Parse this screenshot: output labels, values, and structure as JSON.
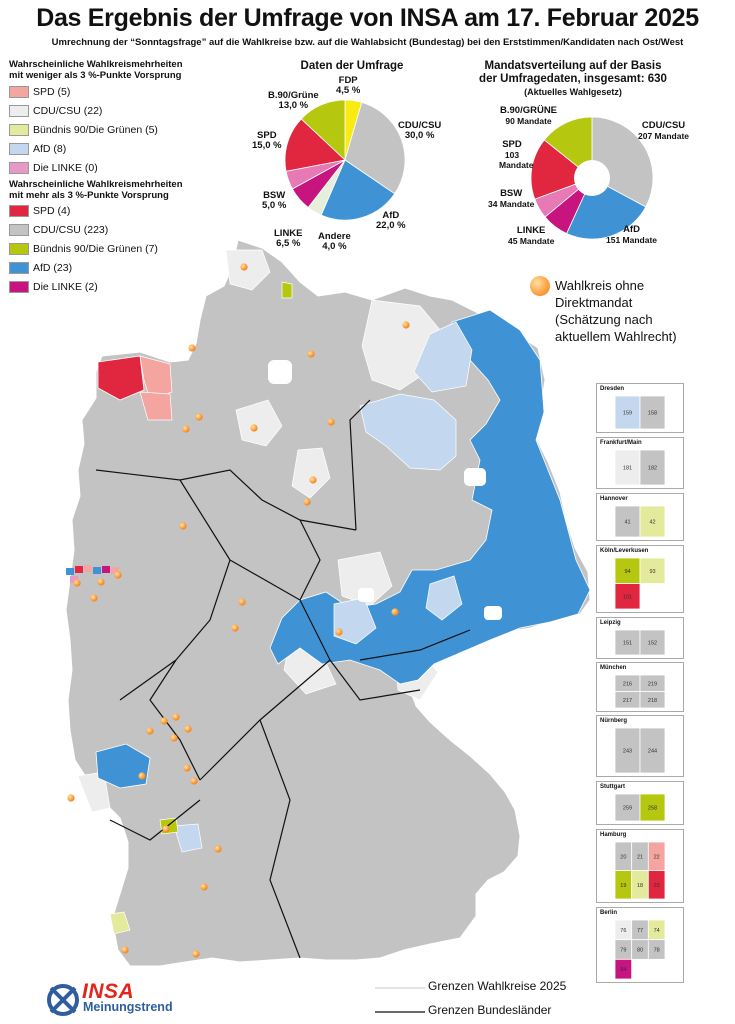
{
  "title": "Das Ergebnis der Umfrage von INSA am 17. Februar 2025",
  "subtitle": "Umrechnung der “Sonntagsfrage” auf die Wahlkreise bzw. auf die Wahlabsicht (Bundestag) bei den Erststimmen/Kandidaten nach Ost/West",
  "colors": {
    "spd": "#e1263f",
    "spd_light": "#f4a5a0",
    "cdu": "#c3c3c3",
    "cdu_light": "#ededed",
    "gruene": "#b5c70e",
    "gruene_light": "#e3ea9c",
    "afd": "#3f93d5",
    "afd_light": "#c3d8ef",
    "linke": "#c7147e",
    "linke_light": "#e79ac7",
    "fdp": "#f7eb12",
    "bsw": "#e77ab4",
    "andere": "#e5efdc"
  },
  "legend_weak": {
    "heading_line1": "Wahrscheinliche Wahlkreismehrheiten",
    "heading_line2": "mit weniger als 3 %-Punkte Vorsprung",
    "items": [
      {
        "label": "SPD (5)",
        "color": "#f4a5a0"
      },
      {
        "label": "CDU/CSU (22)",
        "color": "#ededed"
      },
      {
        "label": "Bündnis 90/Die Grünen (5)",
        "color": "#e3ea9c"
      },
      {
        "label": "AfD (8)",
        "color": "#c3d8ef"
      },
      {
        "label": "Die LINKE (0)",
        "color": "#e79ac7"
      }
    ]
  },
  "legend_strong": {
    "heading_line1": "Wahrscheinliche Wahlkreismehrheiten",
    "heading_line2": "mit mehr als 3 %-Punkte Vorsprung",
    "items": [
      {
        "label": "SPD (4)",
        "color": "#e1263f"
      },
      {
        "label": "CDU/CSU (223)",
        "color": "#c3c3c3"
      },
      {
        "label": "Bündnis 90/Die Grünen (7)",
        "color": "#b5c70e"
      },
      {
        "label": "AfD (23)",
        "color": "#3f93d5"
      },
      {
        "label": "Die LINKE (2)",
        "color": "#c7147e"
      }
    ]
  },
  "chart_data": [
    {
      "type": "pie",
      "title": "Daten der Umfrage",
      "series": [
        {
          "name": "FDP",
          "value": 4.5,
          "label": "4,5 %",
          "color": "#f7eb12"
        },
        {
          "name": "CDU/CSU",
          "value": 30.0,
          "label": "30,0 %",
          "color": "#c3c3c3"
        },
        {
          "name": "AfD",
          "value": 22.0,
          "label": "22,0 %",
          "color": "#3f93d5"
        },
        {
          "name": "Andere",
          "value": 4.0,
          "label": "4,0 %",
          "color": "#e5efdc"
        },
        {
          "name": "LINKE",
          "value": 6.5,
          "label": "6,5 %",
          "color": "#c7147e"
        },
        {
          "name": "BSW",
          "value": 5.0,
          "label": "5,0 %",
          "color": "#e77ab4"
        },
        {
          "name": "SPD",
          "value": 15.0,
          "label": "15,0 %",
          "color": "#e1263f"
        },
        {
          "name": "B.90/Grüne",
          "value": 13.0,
          "label": "13,0 %",
          "color": "#b5c70e"
        }
      ]
    },
    {
      "type": "pie",
      "title_line1": "Mandatsverteilung auf der Basis",
      "title_line2": "der Umfragedaten, insgesamt: 630",
      "title_line3": "(Aktuelles Wahlgesetz)",
      "donut": true,
      "series": [
        {
          "name": "CDU/CSU",
          "value": 207,
          "label": "207 Mandate",
          "color": "#c3c3c3"
        },
        {
          "name": "AfD",
          "value": 151,
          "label": "151 Mandate",
          "color": "#3f93d5"
        },
        {
          "name": "LINKE",
          "value": 45,
          "label": "45 Mandate",
          "color": "#c7147e"
        },
        {
          "name": "BSW",
          "value": 34,
          "label": "34 Mandate",
          "color": "#e77ab4"
        },
        {
          "name": "SPD",
          "value": 103,
          "label": "103 Mandate",
          "color": "#e1263f"
        },
        {
          "name": "B.90/GRÜNE",
          "value": 90,
          "label": "90 Mandate",
          "color": "#b5c70e"
        }
      ]
    }
  ],
  "note": {
    "line1": "Wahlkreis ohne",
    "line2": "Direktmandat",
    "line3": "(Schätzung nach",
    "line4": "aktuellem Wahlrecht)"
  },
  "insets": [
    {
      "title": "Dresden",
      "numbers": [
        "159",
        "158"
      ]
    },
    {
      "title": "Frankfurt/Main",
      "numbers": [
        "181",
        "182"
      ]
    },
    {
      "title": "Hannover",
      "numbers": [
        "41",
        "42"
      ]
    },
    {
      "title": "Köln/Leverkusen",
      "numbers": [
        "94",
        "93",
        "101"
      ]
    },
    {
      "title": "Leipzig",
      "numbers": [
        "151",
        "152"
      ]
    },
    {
      "title": "München",
      "numbers": [
        "216",
        "219",
        "217",
        "218"
      ]
    },
    {
      "title": "Nürnberg",
      "numbers": [
        "243",
        "244"
      ]
    },
    {
      "title": "Stuttgart",
      "numbers": [
        "259",
        "258"
      ]
    },
    {
      "title": "Hamburg",
      "numbers": [
        "20",
        "21",
        "22",
        "19",
        "18",
        "23"
      ]
    },
    {
      "title": "Berlin",
      "numbers": [
        "76",
        "77",
        "74",
        "79",
        "80",
        "78",
        "84"
      ]
    }
  ],
  "bottom_legend": {
    "wahlkreise": "Grenzen Wahlkreise 2025",
    "bundeslaender": "Grenzen Bundesländer"
  },
  "logo": {
    "name": "INSA",
    "sub": "Meinungstrend"
  }
}
